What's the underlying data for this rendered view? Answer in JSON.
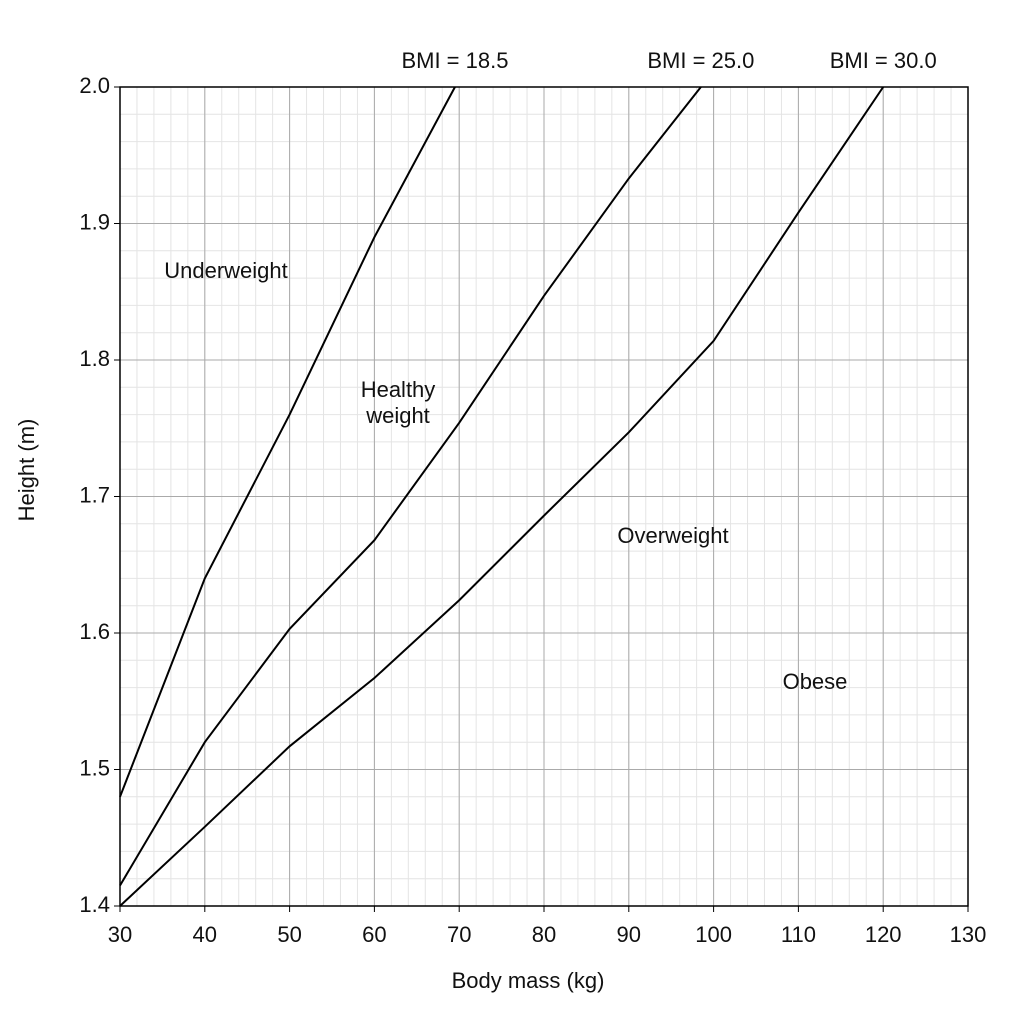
{
  "chart_data": {
    "type": "line",
    "x_label": "Body mass (kg)",
    "y_label": "Height (m)",
    "xlim": [
      30,
      130
    ],
    "ylim": [
      1.4,
      2.0
    ],
    "xticks": [
      30,
      40,
      50,
      60,
      70,
      80,
      90,
      100,
      110,
      120,
      130
    ],
    "yticks": [
      1.4,
      1.5,
      1.6,
      1.7,
      1.8,
      1.9,
      {
        "value": 2,
        "label": "2.0"
      }
    ],
    "grid": true,
    "series": [
      {
        "name": "BMI = 18.5",
        "color": "#000000",
        "x": [
          30,
          40,
          50,
          60,
          69.5
        ],
        "values": [
          1.48,
          1.64,
          1.76,
          1.89,
          2.0
        ]
      },
      {
        "name": "BMI = 25.0",
        "color": "#000000",
        "x": [
          30,
          40,
          50,
          60,
          70,
          80,
          90,
          98.5
        ],
        "values": [
          1.415,
          1.52,
          1.603,
          1.668,
          1.754,
          1.847,
          1.933,
          2.0
        ]
      },
      {
        "name": "BMI = 30.0",
        "color": "#000000",
        "x": [
          30,
          40,
          50,
          60,
          70,
          80,
          90,
          100,
          110,
          120
        ],
        "values": [
          1.4,
          1.458,
          1.517,
          1.567,
          1.624,
          1.686,
          1.747,
          1.814,
          1.908,
          2.0
        ]
      }
    ],
    "annotations": [
      [
        "Underweight"
      ],
      [
        "Healthy",
        "weight"
      ],
      [
        "Overweight"
      ],
      [
        "Obese"
      ]
    ]
  }
}
